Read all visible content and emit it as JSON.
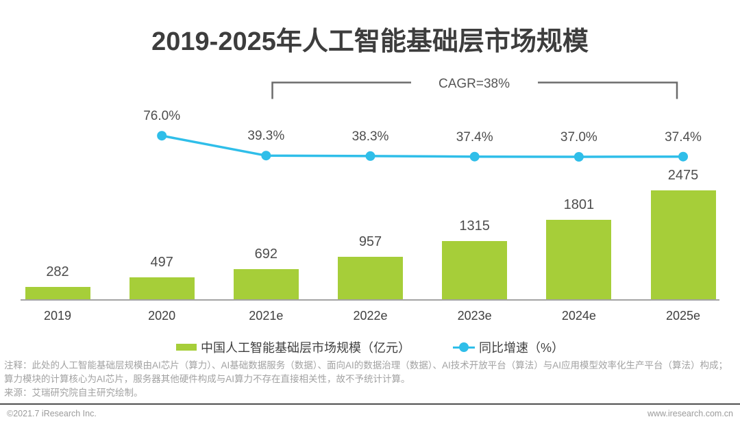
{
  "title": "2019-2025年人工智能基础层市场规模",
  "annotation": {
    "cagr_label": "CAGR=38%"
  },
  "chart_data": {
    "type": "bar",
    "subtype": "bar-with-growth-line",
    "title": "2019-2025年人工智能基础层市场规模",
    "categories": [
      "2019",
      "2020",
      "2021e",
      "2022e",
      "2023e",
      "2024e",
      "2025e"
    ],
    "series": [
      {
        "name": "中国人工智能基础层市场规模（亿元）",
        "type": "bar",
        "color": "#A6CE39",
        "values": [
          282,
          497,
          692,
          957,
          1315,
          1801,
          2475
        ]
      },
      {
        "name": "同比增速（%）",
        "type": "line",
        "color": "#2FBEE9",
        "values": [
          null,
          76.0,
          39.3,
          38.3,
          37.4,
          37.0,
          37.4
        ],
        "point_labels": [
          "",
          "76.0%",
          "39.3%",
          "38.3%",
          "37.4%",
          "37.0%",
          "37.4%"
        ]
      }
    ],
    "annotations": [
      "CAGR=38%"
    ],
    "xlabel": "",
    "ylabel": "",
    "grid": false,
    "legend_position": "bottom"
  },
  "notes": {
    "line1": "注释：此处的人工智能基础层规模由AI芯片（算力）、AI基础数据服务（数据）、面向AI的数据治理（数据）、AI技术开放平台（算法）与AI应用模型效率化生产平台（算法）构成；",
    "line2": "算力模块的计算核心为AI芯片，服务器其他硬件构成与AI算力不存在直接相关性，故不予统计计算。",
    "source": "来源：艾瑞研究院自主研究绘制。"
  },
  "footer": {
    "copyright": "©2021.7 iResearch Inc.",
    "website": "www.iresearch.com.cn"
  },
  "colors": {
    "bar": "#A6CE39",
    "line": "#2FBEE9",
    "title_text": "#3d3d3d",
    "note_text": "#a2a2a2",
    "footer_rule": "#4f4f4f"
  }
}
